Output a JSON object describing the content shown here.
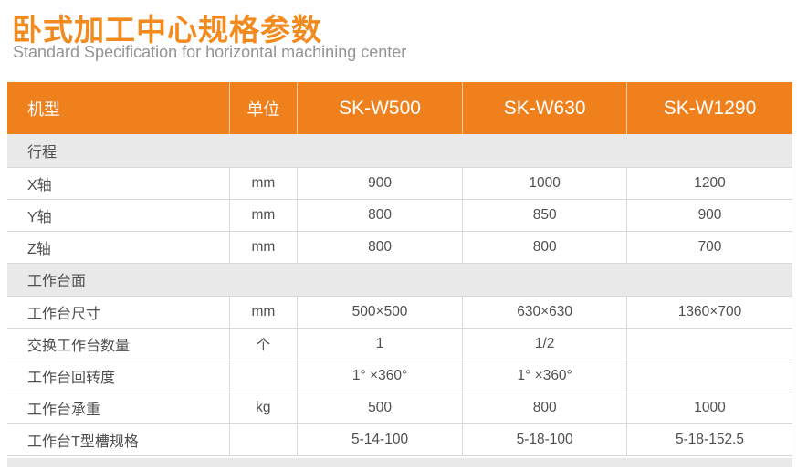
{
  "page": {
    "title": "卧式加工中心规格参数",
    "subtitle": "Standard Specification for horizontal machining center"
  },
  "colors": {
    "accent_orange": "#F0801C",
    "title_orange": "#F28A1E",
    "section_row_gray": "#E9E9E9",
    "row_border_gray": "#D9D9D9",
    "body_text_gray": "#4F4F4F",
    "subtitle_gray": "#949494",
    "header_text": "#FFFFFF"
  },
  "table": {
    "columns": [
      "机型",
      "单位",
      "SK-W500",
      "SK-W630",
      "SK-W1290"
    ],
    "sections": [
      {
        "label": "行程",
        "rows": [
          {
            "label": "X轴",
            "unit": "mm",
            "values": [
              "900",
              "1000",
              "1200"
            ]
          },
          {
            "label": "Y轴",
            "unit": "mm",
            "values": [
              "800",
              "850",
              "900"
            ]
          },
          {
            "label": "Z轴",
            "unit": "mm",
            "values": [
              "800",
              "800",
              "700"
            ]
          }
        ]
      },
      {
        "label": "工作台面",
        "rows": [
          {
            "label": "工作台尺寸",
            "unit": "mm",
            "values": [
              "500×500",
              "630×630",
              "1360×700"
            ]
          },
          {
            "label": "交换工作台数量",
            "unit": "个",
            "values": [
              "1",
              "1/2",
              ""
            ]
          },
          {
            "label": "工作台回转度",
            "unit": "",
            "values": [
              "1° ×360°",
              "1° ×360°",
              ""
            ]
          },
          {
            "label": "工作台承重",
            "unit": "kg",
            "values": [
              "500",
              "800",
              "1000"
            ]
          },
          {
            "label": "工作台T型槽规格",
            "unit": "",
            "values": [
              "5-14-100",
              "5-18-100",
              "5-18-152.5"
            ]
          }
        ]
      }
    ]
  }
}
